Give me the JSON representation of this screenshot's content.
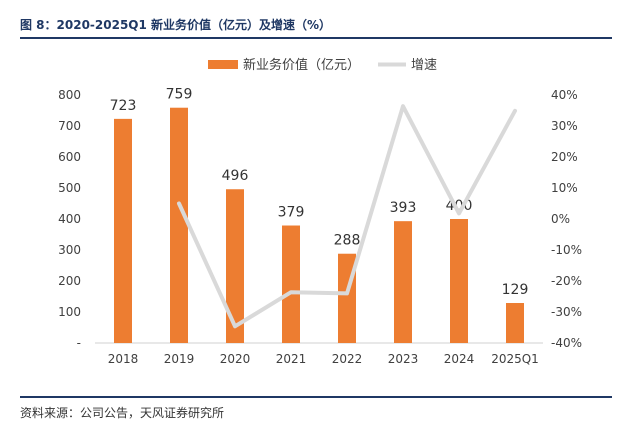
{
  "figure_title": "图 8：2020-2025Q1 新业务价值（亿元）及增速（%）",
  "source_note": "资料来源：公司公告，天风证券研究所",
  "colors": {
    "bar": "#ED7D31",
    "line": "#D9D9D9",
    "axis_text": "#404040",
    "title": "#1F3864"
  },
  "chart_data": {
    "type": "bar",
    "title": "",
    "xlabel": "",
    "ylabel": "",
    "categories": [
      "2018",
      "2019",
      "2020",
      "2021",
      "2022",
      "2023",
      "2024",
      "2025Q1"
    ],
    "series": [
      {
        "name": "新业务价值（亿元）",
        "type": "bar",
        "axis": "left",
        "values": [
          723,
          759,
          496,
          379,
          288,
          393,
          400,
          129
        ],
        "value_labels": [
          "723",
          "759",
          "496",
          "379",
          "288",
          "393",
          "400",
          "129"
        ]
      },
      {
        "name": "增速",
        "type": "line",
        "axis": "right",
        "values": [
          null,
          5,
          -34.6,
          -23.6,
          -24,
          36.4,
          1.8,
          34.9
        ]
      }
    ],
    "ylim": [
      0,
      800
    ],
    "y_ticks": [
      0,
      100,
      200,
      300,
      400,
      500,
      600,
      700,
      800
    ],
    "y_tick_labels": [
      "-",
      "100",
      "200",
      "300",
      "400",
      "500",
      "600",
      "700",
      "800"
    ],
    "y2lim": [
      -40,
      40
    ],
    "y2_ticks": [
      -40,
      -30,
      -20,
      -10,
      0,
      10,
      20,
      30,
      40
    ],
    "y2_tick_labels": [
      "-40%",
      "-30%",
      "-20%",
      "-10%",
      "0%",
      "10%",
      "20%",
      "30%",
      "40%"
    ],
    "legend_position": "top",
    "grid": false
  }
}
